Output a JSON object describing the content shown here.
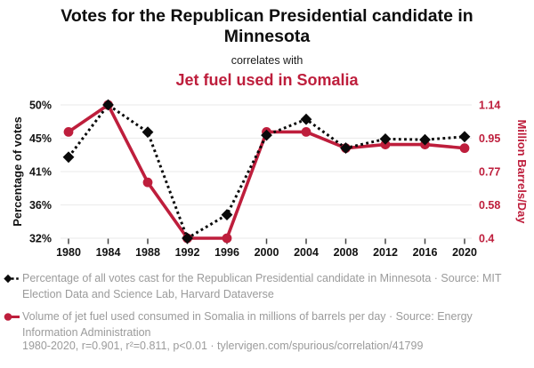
{
  "theme": {
    "red": "#be1e3c",
    "black": "#0a0a0a",
    "gray_text": "#9b9b9b",
    "gridline": "#ededed",
    "tick_mark": "#444444"
  },
  "header": {
    "title": "Votes for the Republican Presidential candidate in Minnesota",
    "connector": "correlates with",
    "subtitle": "Jet fuel used in Somalia"
  },
  "chart_data": {
    "type": "line",
    "x": [
      1980,
      1984,
      1988,
      1992,
      1996,
      2000,
      2004,
      2008,
      2012,
      2016,
      2020
    ],
    "x_tick_labels": [
      "1980",
      "1984",
      "1988",
      "1992",
      "1996",
      "2000",
      "2004",
      "2008",
      "2012",
      "2016",
      "2020"
    ],
    "series": [
      {
        "name": "Votes for the Republican Presidential candidate in Minnesota",
        "axis": "left",
        "color": "#0a0a0a",
        "style": "dashed",
        "marker": "diamond",
        "values": [
          42.6,
          49.5,
          45.9,
          31.9,
          35.0,
          45.5,
          47.6,
          43.8,
          45.0,
          44.9,
          45.3
        ]
      },
      {
        "name": "Jet fuel used in Somalia",
        "axis": "right",
        "color": "#be1e3c",
        "style": "solid",
        "marker": "circle",
        "values": [
          0.99,
          1.14,
          0.71,
          0.4,
          0.4,
          0.99,
          0.99,
          0.9,
          0.92,
          0.92,
          0.9
        ]
      }
    ],
    "left_axis": {
      "label": "Percentage of votes",
      "range": [
        31.9,
        49.5
      ],
      "ticks": [
        31.9,
        36.3,
        40.7,
        45.1,
        49.5
      ],
      "tick_labels": [
        "32%",
        "36%",
        "41%",
        "45%",
        "50%"
      ]
    },
    "right_axis": {
      "label": "Million Barrels/Day",
      "range": [
        0.4,
        1.14
      ],
      "ticks": [
        0.4,
        0.585,
        0.77,
        0.955,
        1.14
      ],
      "tick_labels": [
        "0.4",
        "0.58",
        "0.77",
        "0.95",
        "1.14"
      ]
    },
    "grid": true,
    "legend_position": "bottom"
  },
  "legend": [
    {
      "marker": "diamond-dashed",
      "color": "#0a0a0a",
      "text": "Percentage of all votes cast for the Republican Presidential candidate in Minnesota · Source: MIT Election Data and Science Lab, Harvard Dataverse"
    },
    {
      "marker": "circle-solid",
      "color": "#be1e3c",
      "text": "Volume of jet fuel used consumed in Somalia in millions of barrels per day · Source: Energy Information Administration"
    }
  ],
  "footer": "1980-2020, r=0.901, r²=0.811, p<0.01 · tylervigen.com/spurious/correlation/41799"
}
